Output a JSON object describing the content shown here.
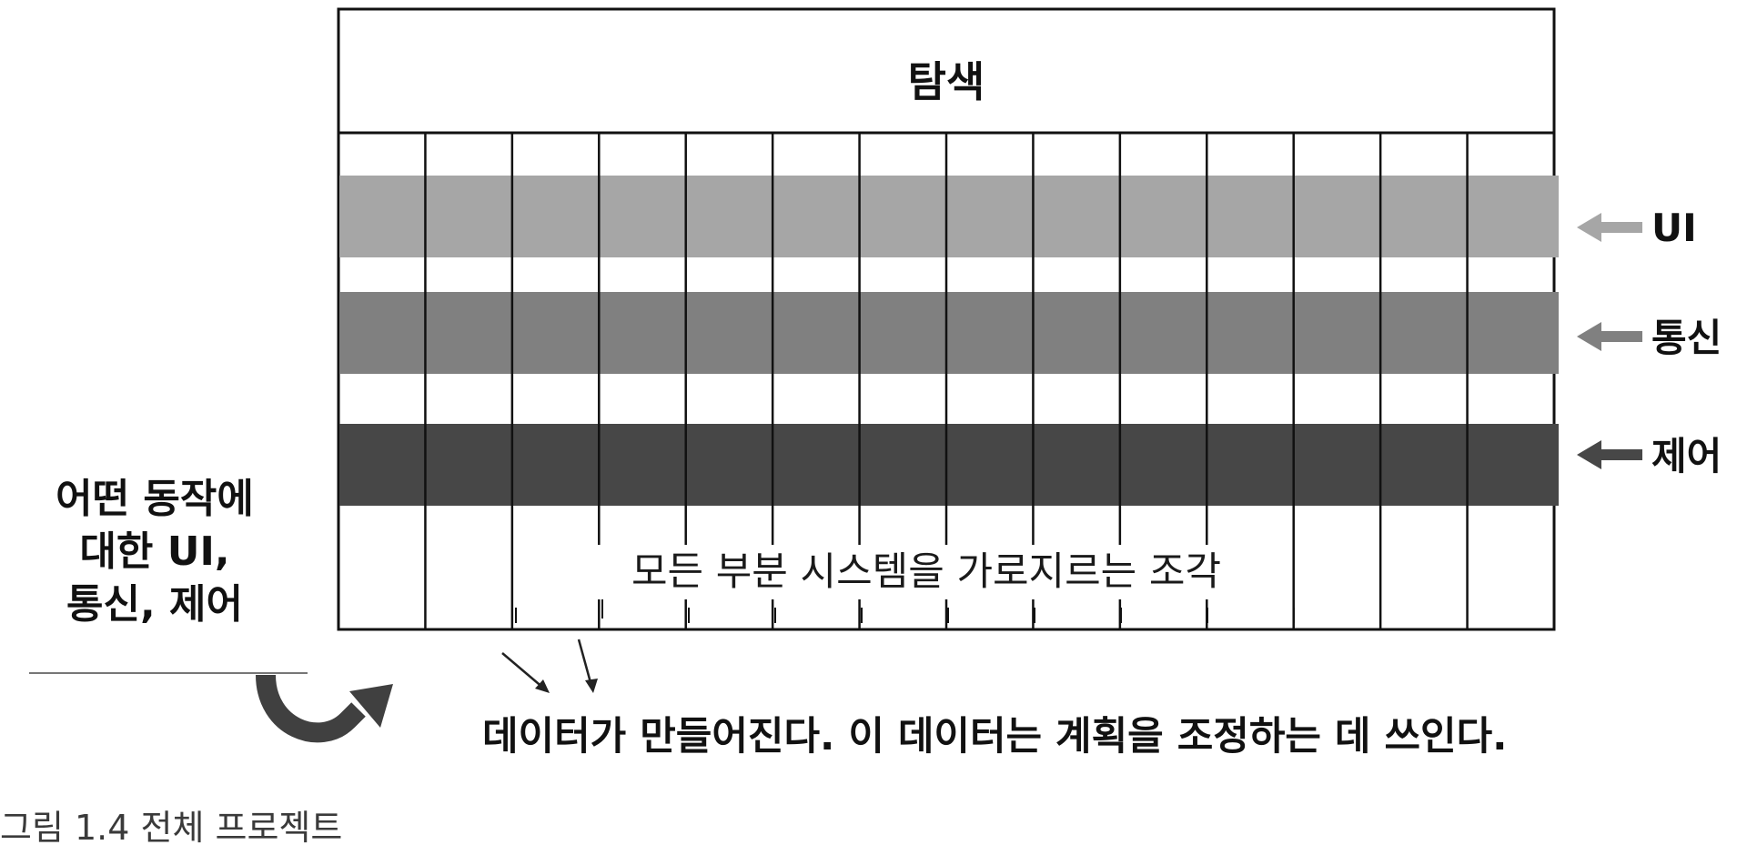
{
  "diagram": {
    "top_box_label": "탐색",
    "layers": [
      {
        "label": "UI",
        "color": "#a6a6a6",
        "arrow_color": "#a6a6a6"
      },
      {
        "label": "통신",
        "color": "#808080",
        "arrow_color": "#808080"
      },
      {
        "label": "제어",
        "color": "#474747",
        "arrow_color": "#474747"
      }
    ],
    "column_count": 14,
    "cross_cutting_label": "모든 부분 시스템을 가로지르는 조각",
    "side_note_lines": [
      "어떤 동작에",
      "대한 UI,",
      "통신, 제어"
    ],
    "data_note": "데이터가 만들어진다. 이 데이터는 계획을 조정하는 데 쓰인다.",
    "line_color": "#111111"
  },
  "figure_caption": "그림 1.4 전체 프로젝트"
}
